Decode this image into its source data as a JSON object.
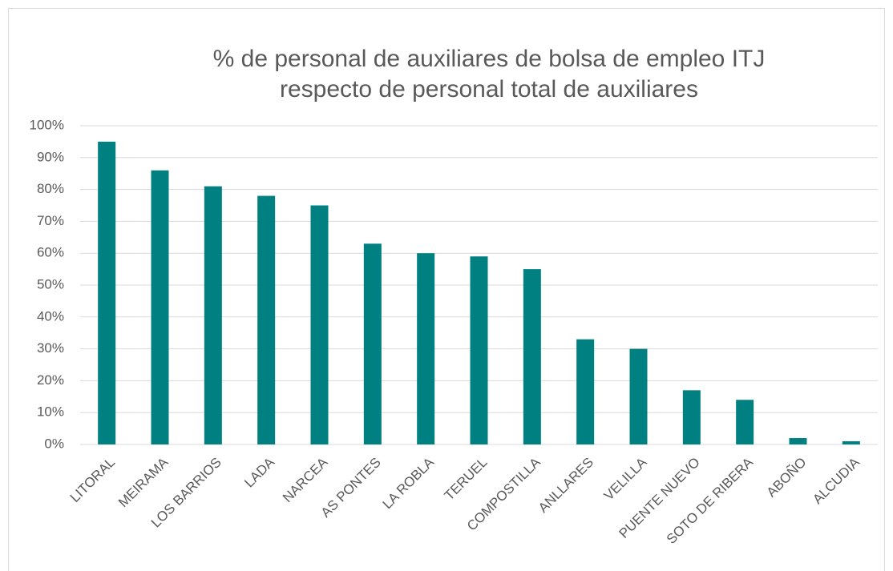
{
  "chart_data": {
    "type": "bar",
    "title": [
      "% de personal de auxiliares de bolsa  de empleo ITJ",
      "respecto de personal total de auxiliares"
    ],
    "categories": [
      "LITORAL",
      "MEIRAMA",
      "LOS BARRIOS",
      "LADA",
      "NARCEA",
      "AS PONTES",
      "LA ROBLA",
      "TERUEL",
      "COMPOSTILLA",
      "ANLLARES",
      "VELILLA",
      "PUENTE NUEVO",
      "SOTO DE RIBERA",
      "ABOÑO",
      "ALCUDIA"
    ],
    "values": [
      95,
      86,
      81,
      78,
      75,
      63,
      60,
      59,
      55,
      33,
      30,
      17,
      14,
      2,
      1
    ],
    "color": "#008080",
    "ylim": [
      0,
      100
    ],
    "yticks": [
      {
        "value": 0,
        "label": "0%"
      },
      {
        "value": 10,
        "label": "10%"
      },
      {
        "value": 20,
        "label": "20%"
      },
      {
        "value": 30,
        "label": "30%"
      },
      {
        "value": 40,
        "label": "40%"
      },
      {
        "value": 50,
        "label": "50%"
      },
      {
        "value": 60,
        "label": "60%"
      },
      {
        "value": 70,
        "label": "70%"
      },
      {
        "value": 80,
        "label": "80%"
      },
      {
        "value": 90,
        "label": "90%"
      },
      {
        "value": 100,
        "label": "100%"
      }
    ],
    "grid": true
  }
}
